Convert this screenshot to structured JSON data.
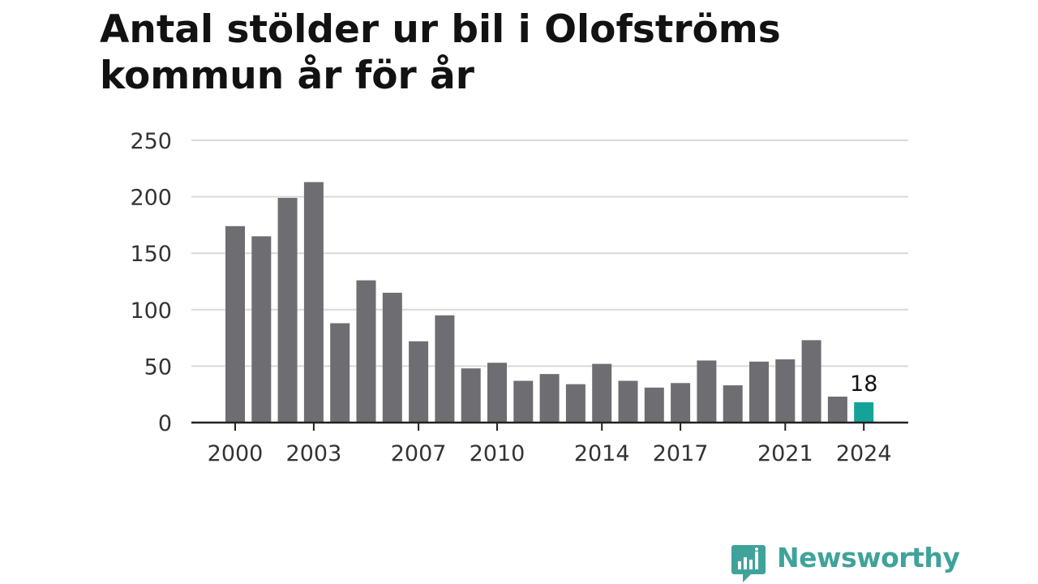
{
  "chart_data": {
    "type": "bar",
    "title": "Antal stölder ur bil i Olofströms kommun år för år",
    "xlabel": "",
    "ylabel": "",
    "categories": [
      2000,
      2001,
      2002,
      2003,
      2004,
      2005,
      2006,
      2007,
      2008,
      2009,
      2010,
      2011,
      2012,
      2013,
      2014,
      2015,
      2016,
      2017,
      2018,
      2019,
      2020,
      2021,
      2022,
      2023,
      2024
    ],
    "values": [
      174,
      165,
      199,
      213,
      88,
      126,
      115,
      72,
      95,
      48,
      53,
      37,
      43,
      34,
      52,
      37,
      31,
      35,
      55,
      33,
      54,
      56,
      73,
      23,
      18
    ],
    "x_tick_labels": [
      "2000",
      "2003",
      "2007",
      "2010",
      "2014",
      "2017",
      "2021",
      "2024"
    ],
    "y_ticks": [
      0,
      50,
      100,
      150,
      200,
      250
    ],
    "ylim": [
      0,
      250
    ],
    "grid": true,
    "highlight": {
      "category": 2024,
      "label": "18"
    },
    "colors": {
      "bar": "#6e6d72",
      "highlight": "#13a39a",
      "grid": "#d9d9d9",
      "axis": "#222222"
    }
  },
  "brand": {
    "name": "Newsworthy",
    "icon": "newsworthy-logo-icon",
    "color": "#3fa39b"
  }
}
